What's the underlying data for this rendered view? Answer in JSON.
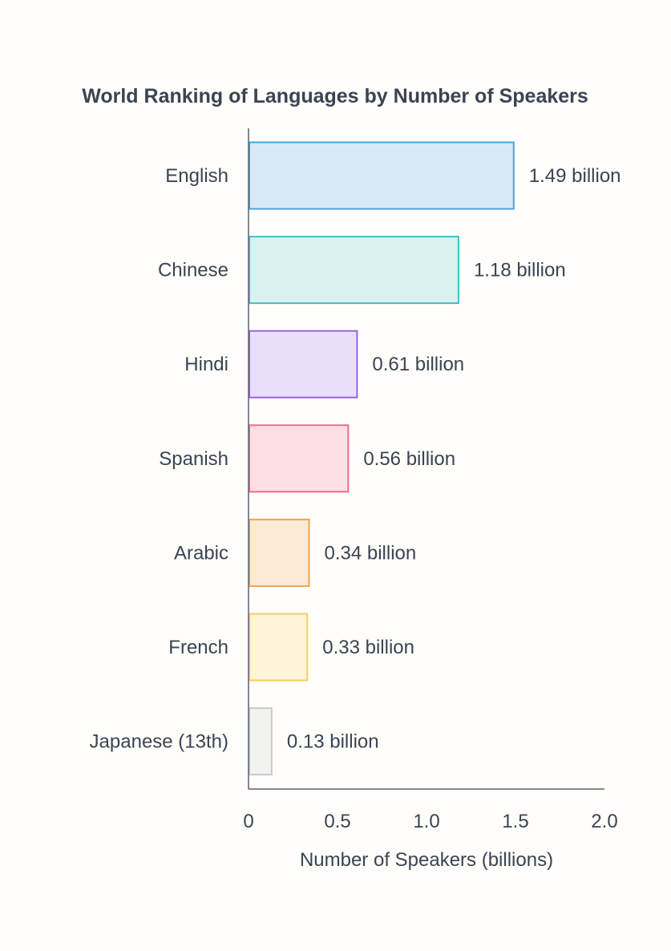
{
  "chart_data": {
    "type": "bar",
    "orientation": "horizontal",
    "title": "World Ranking of Languages by Number of Speakers",
    "xlabel": "Number of Speakers (billions)",
    "ylabel": "",
    "xlim": [
      0,
      2.0
    ],
    "xticks": [
      0,
      0.5,
      1.0,
      1.5,
      2.0
    ],
    "xtick_labels": [
      "0",
      "0.5",
      "1.0",
      "1.5",
      "2.0"
    ],
    "grid": false,
    "legend": "none",
    "categories": [
      "English",
      "Chinese",
      "Hindi",
      "Spanish",
      "Arabic",
      "French",
      "Japanese (13th)"
    ],
    "values": [
      1.49,
      1.18,
      0.61,
      0.56,
      0.34,
      0.33,
      0.13
    ],
    "value_labels": [
      "1.49 billion",
      "1.18 billion",
      "0.61 billion",
      "0.56 billion",
      "0.34 billion",
      "0.33 billion",
      "0.13 billion"
    ],
    "bar_fill_colors": [
      "#d9eaf6",
      "#d9f1ef",
      "#e9dffb",
      "#fde0e6",
      "#fdebd6",
      "#fdf4d9",
      "#f2f2f0"
    ],
    "bar_stroke_colors": [
      "#4aa3df",
      "#45bfc3",
      "#9366df",
      "#f06a8b",
      "#f5a345",
      "#f4cd65",
      "#c9cacc"
    ]
  },
  "colors": {
    "background": "#fffefb",
    "text": "#3a4452",
    "axis": "#5a6270"
  }
}
